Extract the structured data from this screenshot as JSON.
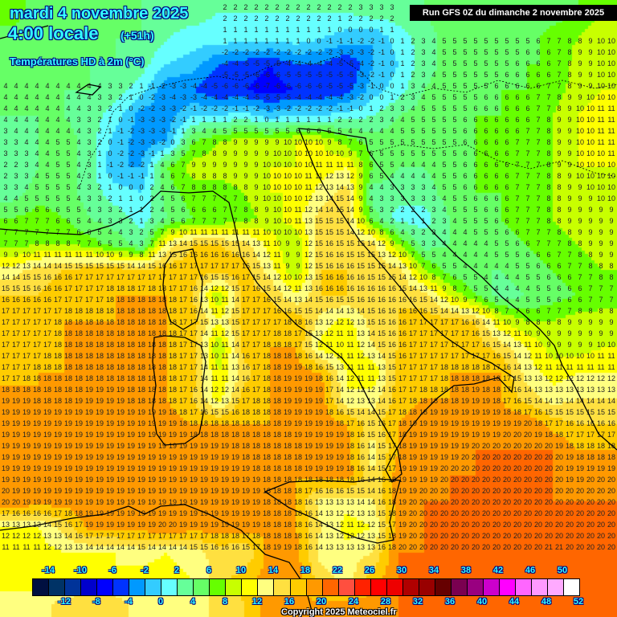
{
  "header": {
    "date": "mardi 4 novembre 2025",
    "time": "4:00 locale",
    "lead": "(+51h)",
    "parameter": "Températures HD à 2m (°C)",
    "run": "Run GFS 0Z du dimanche 2 novembre 2025"
  },
  "copyright": "Copyright 2025 Meteociel.fr",
  "legend": {
    "colors": [
      "#001040",
      "#003366",
      "#003399",
      "#0000cc",
      "#0000ff",
      "#0033ff",
      "#0099ff",
      "#33ccff",
      "#66ffff",
      "#66ff99",
      "#66ff66",
      "#66ff00",
      "#c8ff00",
      "#ffff00",
      "#ffff80",
      "#ffe040",
      "#ffcc00",
      "#ff9900",
      "#ff6600",
      "#ff4f3f",
      "#ff2200",
      "#ff0000",
      "#ee0000",
      "#b00000",
      "#990000",
      "#660000",
      "#7a0050",
      "#990080",
      "#cc00cc",
      "#ff00ff",
      "#ff66ff",
      "#ff99ff",
      "#ffaaff",
      "#ffffff"
    ],
    "top_labels": [
      "-14",
      "-10",
      "-6",
      "-2",
      "2",
      "6",
      "10",
      "14",
      "18",
      "22",
      "26",
      "30",
      "34",
      "38",
      "42",
      "46",
      "50"
    ],
    "bottom_labels": [
      "-12",
      "-8",
      "-4",
      "0",
      "4",
      "8",
      "12",
      "16",
      "20",
      "24",
      "28",
      "32",
      "36",
      "40",
      "44",
      "48",
      "52"
    ],
    "min": -16,
    "step": 2
  },
  "temperature_field_c": [
    [
      7,
      5,
      4,
      4,
      4,
      4,
      3,
      3,
      2,
      2,
      2,
      2,
      2,
      2,
      3,
      3,
      4,
      5,
      5,
      5,
      5,
      5,
      6,
      8
    ],
    [
      5,
      4,
      4,
      4,
      4,
      4,
      2,
      1,
      1,
      1,
      1,
      1,
      0,
      -1,
      -2,
      1,
      3,
      5,
      5,
      5,
      5,
      7,
      8,
      10
    ],
    [
      5,
      4,
      4,
      4,
      4,
      3,
      0,
      -1,
      -4,
      -5,
      -6,
      -4,
      -4,
      -6,
      -2,
      0,
      3,
      5,
      5,
      5,
      6,
      6,
      9,
      10
    ],
    [
      4,
      4,
      4,
      4,
      3,
      1,
      -4,
      -4,
      -6,
      -6,
      -7,
      -6,
      -6,
      -5,
      -1,
      1,
      4,
      5,
      5,
      6,
      6,
      7,
      9,
      10
    ],
    [
      4,
      4,
      4,
      3,
      1,
      -3,
      -3,
      0,
      0,
      1,
      -1,
      0,
      0,
      1,
      2,
      4,
      5,
      5,
      6,
      6,
      6,
      8,
      10,
      11
    ],
    [
      3,
      4,
      5,
      3,
      -1,
      -3,
      -2,
      6,
      8,
      9,
      9,
      10,
      10,
      7,
      5,
      5,
      5,
      5,
      6,
      6,
      7,
      8,
      10,
      11
    ],
    [
      2,
      4,
      5,
      3,
      -2,
      -2,
      6,
      9,
      9,
      9,
      10,
      10,
      11,
      12,
      6,
      4,
      4,
      5,
      6,
      6,
      7,
      8,
      10,
      10
    ],
    [
      3,
      5,
      5,
      3,
      1,
      0,
      5,
      7,
      7,
      8,
      10,
      10,
      13,
      15,
      3,
      3,
      3,
      5,
      6,
      6,
      7,
      8,
      9,
      10
    ],
    [
      6,
      7,
      6,
      4,
      3,
      1,
      4,
      6,
      6,
      7,
      9,
      11,
      15,
      15,
      5,
      1,
      1,
      4,
      5,
      6,
      7,
      8,
      9,
      9
    ],
    [
      7,
      8,
      8,
      7,
      5,
      3,
      13,
      16,
      16,
      15,
      11,
      8,
      16,
      15,
      15,
      8,
      3,
      4,
      4,
      5,
      6,
      7,
      8,
      9
    ],
    [
      13,
      15,
      16,
      17,
      17,
      16,
      17,
      17,
      17,
      17,
      13,
      8,
      16,
      16,
      15,
      15,
      8,
      5,
      4,
      4,
      5,
      6,
      7,
      8
    ],
    [
      16,
      16,
      17,
      17,
      18,
      18,
      18,
      16,
      8,
      17,
      16,
      12,
      16,
      16,
      16,
      16,
      15,
      10,
      6,
      3,
      4,
      5,
      6,
      7
    ],
    [
      17,
      17,
      18,
      18,
      18,
      18,
      18,
      17,
      12,
      17,
      17,
      18,
      13,
      11,
      15,
      16,
      17,
      17,
      16,
      10,
      8,
      8,
      9,
      9
    ],
    [
      17,
      17,
      18,
      18,
      18,
      18,
      18,
      17,
      8,
      17,
      18,
      18,
      11,
      10,
      14,
      16,
      17,
      17,
      17,
      15,
      12,
      9,
      9,
      10
    ],
    [
      17,
      18,
      18,
      18,
      18,
      18,
      18,
      17,
      10,
      15,
      18,
      19,
      18,
      12,
      10,
      17,
      17,
      18,
      18,
      18,
      13,
      11,
      12,
      12
    ],
    [
      19,
      18,
      18,
      19,
      19,
      18,
      18,
      16,
      11,
      17,
      18,
      19,
      19,
      12,
      13,
      17,
      18,
      18,
      19,
      18,
      15,
      13,
      14,
      14
    ],
    [
      19,
      19,
      19,
      19,
      19,
      19,
      19,
      18,
      18,
      18,
      18,
      19,
      19,
      18,
      15,
      18,
      19,
      19,
      19,
      19,
      20,
      17,
      16,
      16
    ],
    [
      19,
      19,
      19,
      19,
      19,
      19,
      19,
      19,
      19,
      18,
      18,
      18,
      19,
      19,
      13,
      18,
      19,
      19,
      20,
      20,
      20,
      20,
      18,
      18
    ],
    [
      19,
      19,
      19,
      19,
      19,
      19,
      19,
      19,
      19,
      19,
      18,
      18,
      19,
      19,
      14,
      19,
      19,
      20,
      20,
      20,
      20,
      20,
      19,
      20
    ],
    [
      20,
      19,
      19,
      19,
      19,
      19,
      19,
      19,
      19,
      19,
      18,
      18,
      13,
      13,
      14,
      19,
      20,
      20,
      20,
      20,
      20,
      20,
      20,
      20
    ],
    [
      12,
      12,
      15,
      19,
      19,
      19,
      20,
      19,
      19,
      19,
      18,
      18,
      14,
      11,
      12,
      19,
      20,
      20,
      20,
      20,
      20,
      20,
      20,
      20
    ],
    [
      11,
      11,
      12,
      12,
      12,
      13,
      12,
      13,
      15,
      14,
      19,
      19,
      13,
      13,
      14,
      20,
      20,
      20,
      20,
      20,
      20,
      21,
      20,
      20
    ],
    [
      11,
      11,
      11,
      11,
      12,
      11,
      11,
      12,
      15,
      17,
      19,
      19,
      15,
      13,
      17,
      20,
      20,
      21,
      21,
      20,
      20,
      21,
      21,
      21
    ],
    [
      13,
      13,
      15,
      16,
      15,
      13,
      14,
      14,
      14,
      16,
      19,
      19,
      18,
      19,
      19,
      20,
      21,
      21,
      21,
      21,
      21,
      21,
      21,
      21
    ]
  ]
}
